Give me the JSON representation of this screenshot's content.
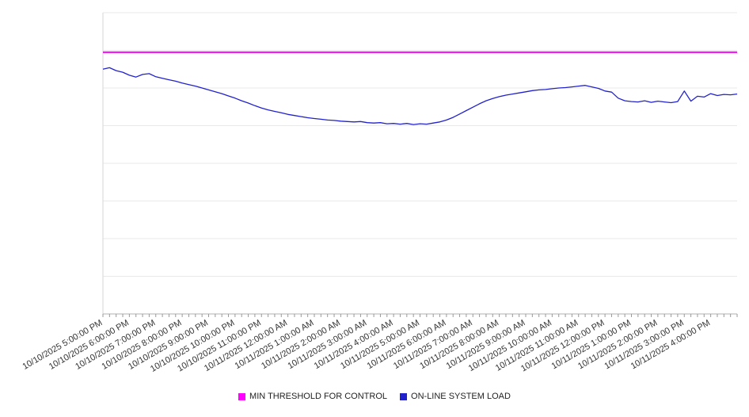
{
  "chart_data": {
    "type": "line",
    "title": "",
    "y_axis_labels_visible": false,
    "y_gridline_count": 8,
    "value_units": "unlabeled gridline units (0 = bottom axis, 8 = top gridline)",
    "x_range_hours": [
      0,
      24
    ],
    "x_minor_tick_every_hours": 0.25,
    "x_tick_labels": [
      "10/10/2025 5:00:00 PM",
      "10/10/2025 6:00:00 PM",
      "10/10/2025 7:00:00 PM",
      "10/10/2025 8:00:00 PM",
      "10/10/2025 9:00:00 PM",
      "10/10/2025 10:00:00 PM",
      "10/10/2025 11:00:00 PM",
      "10/11/2025 12:00:00 AM",
      "10/11/2025 1:00:00 AM",
      "10/11/2025 2:00:00 AM",
      "10/11/2025 3:00:00 AM",
      "10/11/2025 4:00:00 AM",
      "10/11/2025 5:00:00 AM",
      "10/11/2025 6:00:00 AM",
      "10/11/2025 7:00:00 AM",
      "10/11/2025 8:00:00 AM",
      "10/11/2025 9:00:00 AM",
      "10/11/2025 10:00:00 AM",
      "10/11/2025 11:00:00 AM",
      "10/11/2025 12:00:00 PM",
      "10/11/2025 1:00:00 PM",
      "10/11/2025 2:00:00 PM",
      "10/11/2025 3:00:00 PM",
      "10/11/2025 4:00:00 PM"
    ],
    "series": [
      {
        "name": "MIN THRESHOLD FOR CONTROL",
        "style": "constant-horizontal-line",
        "color": "#FF00FF",
        "value": 6.95
      },
      {
        "name": "ON-LINE SYSTEM LOAD",
        "style": "line",
        "color": "#2222CC",
        "x_start_hour": 0,
        "x_step_hours": 0.25,
        "values": [
          6.5,
          6.54,
          6.46,
          6.42,
          6.34,
          6.29,
          6.36,
          6.38,
          6.3,
          6.26,
          6.22,
          6.18,
          6.13,
          6.09,
          6.05,
          6.0,
          5.95,
          5.9,
          5.85,
          5.79,
          5.73,
          5.66,
          5.6,
          5.53,
          5.47,
          5.42,
          5.38,
          5.34,
          5.3,
          5.27,
          5.24,
          5.21,
          5.19,
          5.17,
          5.15,
          5.14,
          5.12,
          5.11,
          5.1,
          5.11,
          5.08,
          5.07,
          5.08,
          5.05,
          5.06,
          5.04,
          5.06,
          5.03,
          5.05,
          5.04,
          5.07,
          5.1,
          5.15,
          5.22,
          5.31,
          5.4,
          5.49,
          5.58,
          5.66,
          5.72,
          5.77,
          5.81,
          5.84,
          5.87,
          5.9,
          5.93,
          5.95,
          5.96,
          5.98,
          6.0,
          6.01,
          6.03,
          6.05,
          6.07,
          6.03,
          5.99,
          5.92,
          5.89,
          5.73,
          5.66,
          5.64,
          5.63,
          5.66,
          5.62,
          5.65,
          5.63,
          5.61,
          5.64,
          5.92,
          5.65,
          5.78,
          5.76,
          5.85,
          5.8,
          5.83,
          5.82,
          5.84
        ]
      }
    ],
    "legend": {
      "position": "bottom-center",
      "entries": [
        {
          "label": "MIN THRESHOLD FOR CONTROL",
          "color": "#FF00FF"
        },
        {
          "label": "ON-LINE SYSTEM LOAD",
          "color": "#2222CC"
        }
      ]
    },
    "layout_hints": {
      "grid": "horizontal gridlines only",
      "x_labels_rotation_deg": -30,
      "gridline_color": "#e9e9e9",
      "axis_color": "#b0b0b0"
    }
  }
}
